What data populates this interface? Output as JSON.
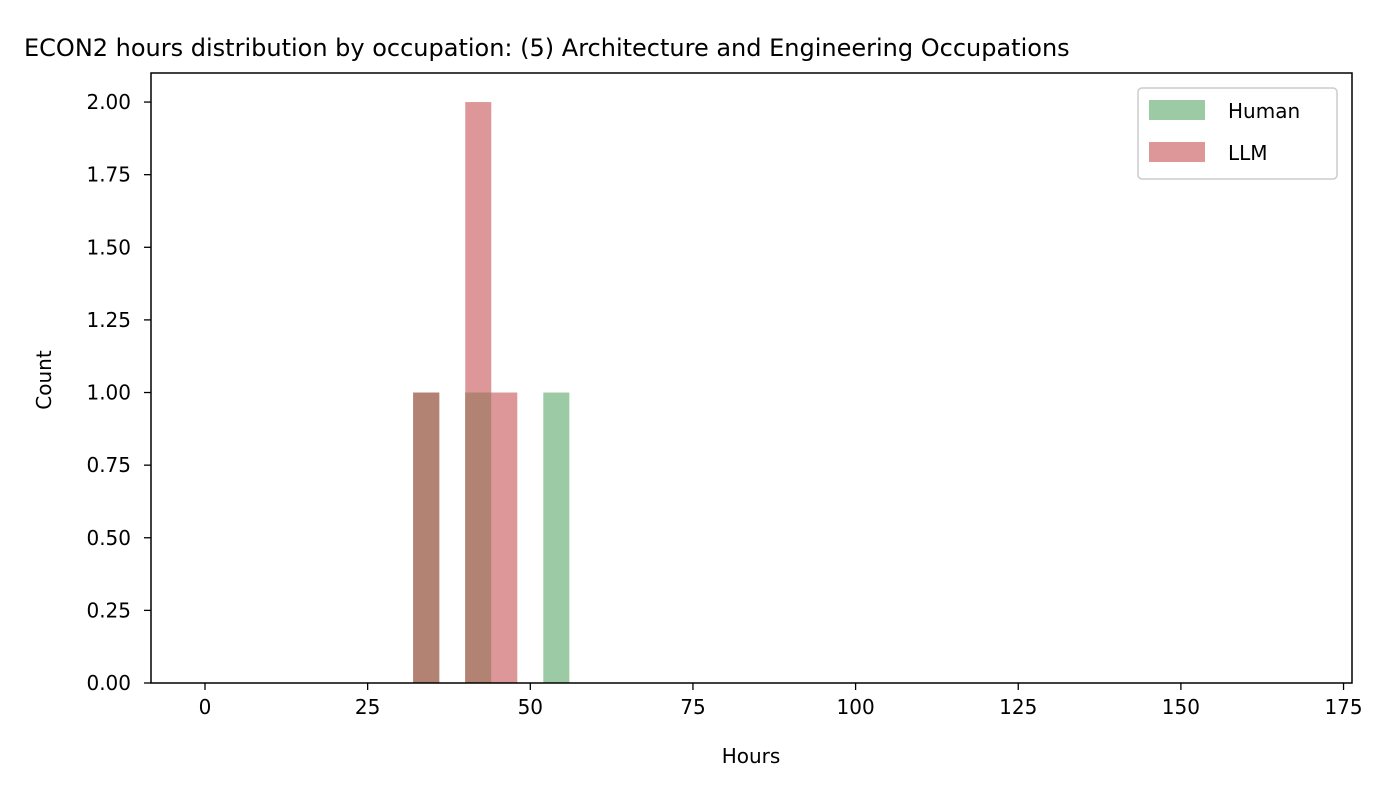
{
  "chart_data": {
    "type": "bar",
    "title": "ECON2 hours distribution by occupation: (5) Architecture and Engineering Occupations",
    "xlabel": "Hours",
    "ylabel": "Count",
    "xlim": [
      -8.3,
      176.3
    ],
    "ylim": [
      0,
      2.1
    ],
    "x_ticks": [
      "0",
      "25",
      "50",
      "75",
      "100",
      "125",
      "150",
      "175"
    ],
    "x_tick_values": [
      0,
      25,
      50,
      75,
      100,
      125,
      150,
      175
    ],
    "y_ticks": [
      "0.00",
      "0.25",
      "0.50",
      "0.75",
      "1.00",
      "1.25",
      "1.50",
      "1.75",
      "2.00"
    ],
    "y_tick_values": [
      0,
      0.25,
      0.5,
      0.75,
      1.0,
      1.25,
      1.5,
      1.75,
      2.0
    ],
    "grid": false,
    "legend_position": "top-right",
    "series": [
      {
        "name": "Human",
        "color": "#9ccaa4",
        "bins": [
          {
            "x0": 32,
            "x1": 36,
            "value": 1
          },
          {
            "x0": 40,
            "x1": 44,
            "value": 1
          },
          {
            "x0": 52,
            "x1": 56,
            "value": 1
          }
        ]
      },
      {
        "name": "LLM",
        "color": "#dd9799",
        "bins": [
          {
            "x0": 32,
            "x1": 36,
            "value": 1
          },
          {
            "x0": 40,
            "x1": 44,
            "value": 2
          },
          {
            "x0": 44,
            "x1": 48,
            "value": 1
          }
        ]
      }
    ],
    "overlap_color": "#b28273"
  }
}
